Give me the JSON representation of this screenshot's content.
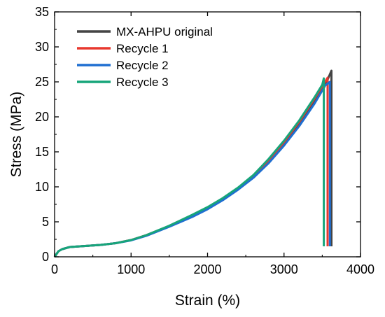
{
  "chart_data": {
    "type": "line",
    "title": "",
    "xlabel": "Strain (%)",
    "ylabel": "Stress (MPa)",
    "xlim": [
      0,
      4000
    ],
    "ylim": [
      0,
      35
    ],
    "x_ticks": [
      0,
      1000,
      2000,
      3000,
      4000
    ],
    "y_ticks": [
      0,
      5,
      10,
      15,
      20,
      25,
      30,
      35
    ],
    "grid": false,
    "legend_position": "top-left",
    "series": [
      {
        "name": "MX-AHPU original",
        "color": "#444444",
        "points": [
          [
            0,
            0
          ],
          [
            50,
            0.8
          ],
          [
            100,
            1.1
          ],
          [
            200,
            1.4
          ],
          [
            400,
            1.55
          ],
          [
            600,
            1.7
          ],
          [
            800,
            1.95
          ],
          [
            1000,
            2.4
          ],
          [
            1200,
            3.1
          ],
          [
            1500,
            4.4
          ],
          [
            1800,
            5.9
          ],
          [
            2000,
            7.0
          ],
          [
            2200,
            8.3
          ],
          [
            2400,
            9.8
          ],
          [
            2600,
            11.6
          ],
          [
            2800,
            13.7
          ],
          [
            3000,
            16.2
          ],
          [
            3200,
            19.0
          ],
          [
            3400,
            22.2
          ],
          [
            3550,
            24.8
          ],
          [
            3620,
            26.6
          ],
          [
            3620,
            1.5
          ]
        ]
      },
      {
        "name": "Recycle 1",
        "color": "#e8392f",
        "points": [
          [
            0,
            0
          ],
          [
            50,
            0.8
          ],
          [
            100,
            1.1
          ],
          [
            200,
            1.4
          ],
          [
            400,
            1.55
          ],
          [
            600,
            1.7
          ],
          [
            800,
            1.95
          ],
          [
            1000,
            2.4
          ],
          [
            1200,
            3.1
          ],
          [
            1500,
            4.4
          ],
          [
            1800,
            5.9
          ],
          [
            2000,
            7.0
          ],
          [
            2200,
            8.3
          ],
          [
            2400,
            9.8
          ],
          [
            2600,
            11.6
          ],
          [
            2800,
            13.8
          ],
          [
            3000,
            16.4
          ],
          [
            3200,
            19.3
          ],
          [
            3400,
            22.6
          ],
          [
            3570,
            25.6
          ],
          [
            3570,
            1.5
          ]
        ]
      },
      {
        "name": "Recycle 2",
        "color": "#1f6fd1",
        "points": [
          [
            0,
            0
          ],
          [
            50,
            0.8
          ],
          [
            100,
            1.1
          ],
          [
            200,
            1.4
          ],
          [
            400,
            1.55
          ],
          [
            600,
            1.7
          ],
          [
            800,
            1.95
          ],
          [
            1000,
            2.35
          ],
          [
            1200,
            3.0
          ],
          [
            1500,
            4.3
          ],
          [
            1800,
            5.7
          ],
          [
            2000,
            6.8
          ],
          [
            2200,
            8.1
          ],
          [
            2400,
            9.6
          ],
          [
            2600,
            11.3
          ],
          [
            2800,
            13.4
          ],
          [
            3000,
            15.9
          ],
          [
            3200,
            18.7
          ],
          [
            3400,
            21.9
          ],
          [
            3540,
            24.5
          ],
          [
            3600,
            25.0
          ],
          [
            3600,
            1.5
          ]
        ]
      },
      {
        "name": "Recycle 3",
        "color": "#17a57a",
        "points": [
          [
            0,
            0
          ],
          [
            50,
            0.8
          ],
          [
            100,
            1.1
          ],
          [
            200,
            1.4
          ],
          [
            400,
            1.55
          ],
          [
            600,
            1.7
          ],
          [
            800,
            1.95
          ],
          [
            1000,
            2.4
          ],
          [
            1200,
            3.1
          ],
          [
            1500,
            4.45
          ],
          [
            1800,
            6.0
          ],
          [
            2000,
            7.1
          ],
          [
            2200,
            8.4
          ],
          [
            2400,
            9.9
          ],
          [
            2600,
            11.7
          ],
          [
            2800,
            14.0
          ],
          [
            3000,
            16.6
          ],
          [
            3200,
            19.5
          ],
          [
            3400,
            22.8
          ],
          [
            3500,
            24.6
          ],
          [
            3520,
            25.5
          ],
          [
            3520,
            1.5
          ]
        ]
      }
    ]
  }
}
